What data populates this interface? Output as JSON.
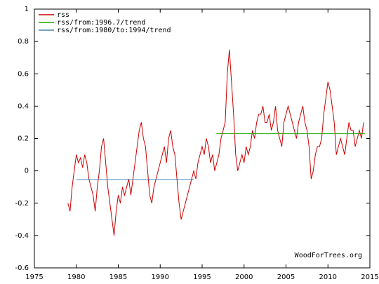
{
  "chart_data": {
    "type": "line",
    "series": [
      {
        "name": "rss",
        "color": "#cc0000",
        "x": [
          1979,
          1979.25,
          1979.5,
          1979.75,
          1980,
          1980.25,
          1980.5,
          1980.75,
          1981,
          1981.25,
          1981.5,
          1981.75,
          1982,
          1982.25,
          1982.5,
          1982.75,
          1983,
          1983.25,
          1983.5,
          1983.75,
          1984,
          1984.25,
          1984.5,
          1984.75,
          1985,
          1985.25,
          1985.5,
          1985.75,
          1986,
          1986.25,
          1986.5,
          1986.75,
          1987,
          1987.25,
          1987.5,
          1987.75,
          1988,
          1988.25,
          1988.5,
          1988.75,
          1989,
          1989.25,
          1989.5,
          1989.75,
          1990,
          1990.25,
          1990.5,
          1990.75,
          1991,
          1991.25,
          1991.5,
          1991.75,
          1992,
          1992.25,
          1992.5,
          1992.75,
          1993,
          1993.25,
          1993.5,
          1993.75,
          1994,
          1994.25,
          1994.5,
          1994.75,
          1995,
          1995.25,
          1995.5,
          1995.75,
          1996,
          1996.25,
          1996.5,
          1996.75,
          1997,
          1997.25,
          1997.5,
          1997.75,
          1998,
          1998.25,
          1998.5,
          1998.75,
          1999,
          1999.25,
          1999.5,
          1999.75,
          2000,
          2000.25,
          2000.5,
          2000.75,
          2001,
          2001.25,
          2001.5,
          2001.75,
          2002,
          2002.25,
          2002.5,
          2002.75,
          2003,
          2003.25,
          2003.5,
          2003.75,
          2004,
          2004.25,
          2004.5,
          2004.75,
          2005,
          2005.25,
          2005.5,
          2005.75,
          2006,
          2006.25,
          2006.5,
          2006.75,
          2007,
          2007.25,
          2007.5,
          2007.75,
          2008,
          2008.25,
          2008.5,
          2008.75,
          2009,
          2009.25,
          2009.5,
          2009.75,
          2010,
          2010.25,
          2010.5,
          2010.75,
          2011,
          2011.25,
          2011.5,
          2011.75,
          2012,
          2012.25,
          2012.5,
          2012.75,
          2013,
          2013.25,
          2013.5,
          2013.75,
          2014,
          2014.25
        ],
        "values": [
          -0.2,
          -0.25,
          -0.1,
          0.0,
          0.1,
          0.05,
          0.08,
          0.02,
          0.1,
          0.05,
          -0.05,
          -0.1,
          -0.15,
          -0.25,
          -0.1,
          0.0,
          0.15,
          0.2,
          0.05,
          -0.1,
          -0.2,
          -0.3,
          -0.4,
          -0.25,
          -0.15,
          -0.2,
          -0.1,
          -0.15,
          -0.1,
          -0.05,
          -0.15,
          -0.05,
          0.05,
          0.15,
          0.25,
          0.3,
          0.2,
          0.15,
          0.0,
          -0.15,
          -0.2,
          -0.1,
          -0.05,
          0.0,
          0.05,
          0.1,
          0.15,
          0.05,
          0.2,
          0.25,
          0.15,
          0.1,
          -0.05,
          -0.2,
          -0.3,
          -0.25,
          -0.2,
          -0.15,
          -0.1,
          -0.05,
          0.0,
          -0.05,
          0.05,
          0.1,
          0.15,
          0.1,
          0.2,
          0.15,
          0.05,
          0.1,
          0.0,
          0.05,
          0.1,
          0.2,
          0.25,
          0.3,
          0.6,
          0.75,
          0.55,
          0.35,
          0.1,
          0.0,
          0.05,
          0.1,
          0.05,
          0.15,
          0.1,
          0.15,
          0.25,
          0.2,
          0.3,
          0.35,
          0.35,
          0.4,
          0.3,
          0.3,
          0.35,
          0.25,
          0.3,
          0.4,
          0.25,
          0.2,
          0.15,
          0.3,
          0.35,
          0.4,
          0.35,
          0.3,
          0.25,
          0.2,
          0.3,
          0.35,
          0.4,
          0.3,
          0.25,
          0.15,
          -0.05,
          0.0,
          0.1,
          0.15,
          0.15,
          0.2,
          0.35,
          0.45,
          0.55,
          0.5,
          0.4,
          0.3,
          0.1,
          0.15,
          0.2,
          0.15,
          0.1,
          0.2,
          0.3,
          0.25,
          0.25,
          0.15,
          0.2,
          0.25,
          0.2,
          0.3
        ]
      },
      {
        "name": "rss/from:1996.7/trend",
        "color": "#22aa00",
        "x": [
          1996.7,
          2014.4
        ],
        "values": [
          0.23,
          0.23
        ]
      },
      {
        "name": "rss/from:1980/to:1994/trend",
        "color": "#4682b4",
        "x": [
          1980,
          1994
        ],
        "values": [
          -0.055,
          -0.055
        ]
      }
    ],
    "xlim": [
      1975,
      2015
    ],
    "xticks": [
      1975,
      1980,
      1985,
      1990,
      1995,
      2000,
      2005,
      2010,
      2015
    ],
    "ylim": [
      -0.6,
      1
    ],
    "yticks": [
      -0.6,
      -0.4,
      -0.2,
      0,
      0.2,
      0.4,
      0.6,
      0.8,
      1
    ],
    "legend": "upper left",
    "annotation": "WoodForTrees.org"
  }
}
